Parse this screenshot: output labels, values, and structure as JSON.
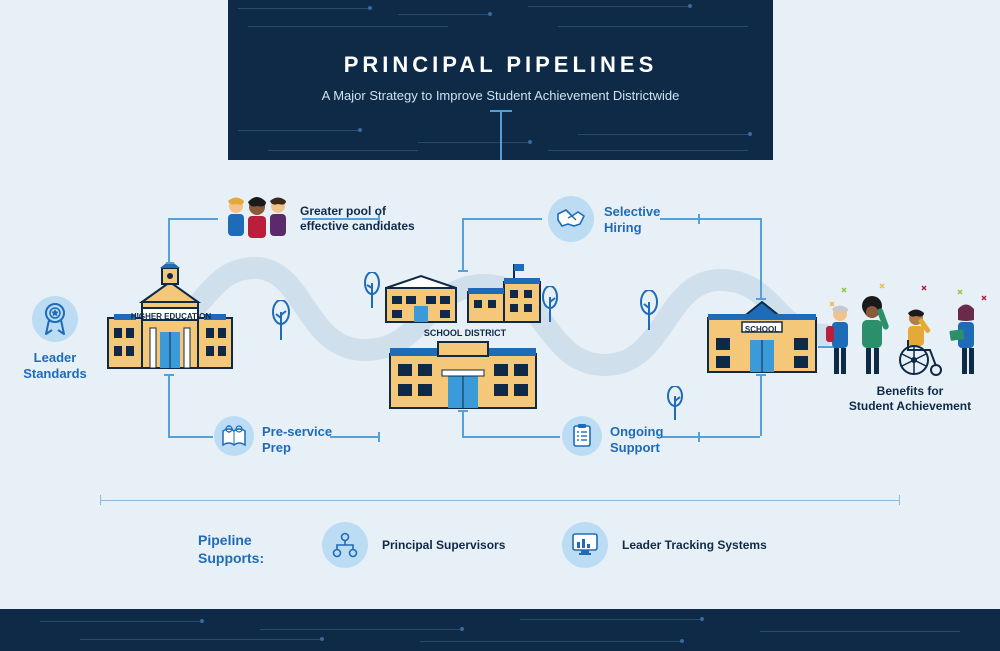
{
  "header": {
    "title": "PRINCIPAL PIPELINES",
    "subtitle": "A Major Strategy to Improve Student Achievement Districtwide",
    "bg_color": "#0e2a47",
    "title_color": "#ffffff",
    "subtitle_color": "#cfe2f2"
  },
  "layout": {
    "page_bg": "#e8f0f7",
    "road_color": "#cfe0ec",
    "road_width": 22,
    "connector_color": "#56a0d8",
    "rule_color": "#8fb9da"
  },
  "icon_badge_bg": "#bcdcf4",
  "nodes": {
    "leader_standards": {
      "label": "Leader\nStandards",
      "icon": "ribbon",
      "label_color": "#1e6bb8"
    },
    "candidates": {
      "label": "Greater pool of\neffective candidates",
      "icon": "people-trio",
      "label_color": "#0e2a47"
    },
    "preservice": {
      "label": "Pre-service\nPrep",
      "icon": "book-gear",
      "label_color": "#1e6bb8"
    },
    "selective_hiring": {
      "label": "Selective\nHiring",
      "icon": "handshake",
      "label_color": "#1e6bb8"
    },
    "ongoing_support": {
      "label": "Ongoing\nSupport",
      "icon": "checklist",
      "label_color": "#1e6bb8"
    },
    "benefits": {
      "label": "Benefits for\nStudent Achievement",
      "label_color": "#0e2a47"
    }
  },
  "buildings": {
    "higher_ed": {
      "label": "HIGHER EDUCATION"
    },
    "district": {
      "label": "SCHOOL DISTRICT"
    },
    "school": {
      "label": "SCHOOL"
    }
  },
  "building_colors": {
    "wall": "#f5c879",
    "roof": "#1e6bb8",
    "window_dark": "#0e2a47",
    "door_blue": "#3a9bd8",
    "outline": "#0e2a47"
  },
  "supports": {
    "heading": "Pipeline\nSupports:",
    "items": [
      {
        "label": "Principal Supervisors",
        "icon": "org-chart"
      },
      {
        "label": "Leader Tracking Systems",
        "icon": "dashboard"
      }
    ]
  }
}
